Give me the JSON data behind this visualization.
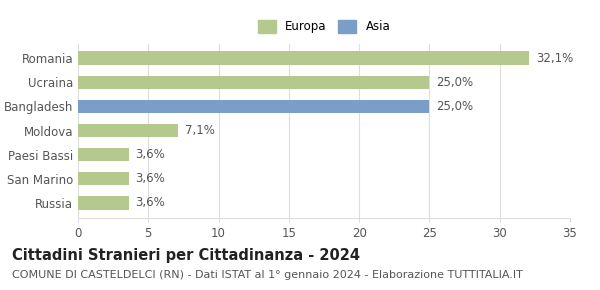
{
  "categories": [
    "Romania",
    "Ucraina",
    "Bangladesh",
    "Moldova",
    "Paesi Bassi",
    "San Marino",
    "Russia"
  ],
  "values": [
    32.1,
    25.0,
    25.0,
    7.1,
    3.6,
    3.6,
    3.6
  ],
  "labels": [
    "32,1%",
    "25,0%",
    "25,0%",
    "7,1%",
    "3,6%",
    "3,6%",
    "3,6%"
  ],
  "colors": [
    "#b5c98e",
    "#b5c98e",
    "#7b9ec9",
    "#b5c98e",
    "#b5c98e",
    "#b5c98e",
    "#b5c98e"
  ],
  "xlim": [
    0,
    35
  ],
  "xticks": [
    0,
    5,
    10,
    15,
    20,
    25,
    30,
    35
  ],
  "legend_items": [
    {
      "label": "Europa",
      "color": "#b5c98e"
    },
    {
      "label": "Asia",
      "color": "#7b9ec9"
    }
  ],
  "title": "Cittadini Stranieri per Cittadinanza - 2024",
  "subtitle": "COMUNE DI CASTELDELCI (RN) - Dati ISTAT al 1° gennaio 2024 - Elaborazione TUTTITALIA.IT",
  "bg_color": "#ffffff",
  "bar_height": 0.55,
  "label_fontsize": 8.5,
  "tick_fontsize": 8.5,
  "title_fontsize": 10.5,
  "subtitle_fontsize": 8,
  "grid_color": "#dddddd"
}
